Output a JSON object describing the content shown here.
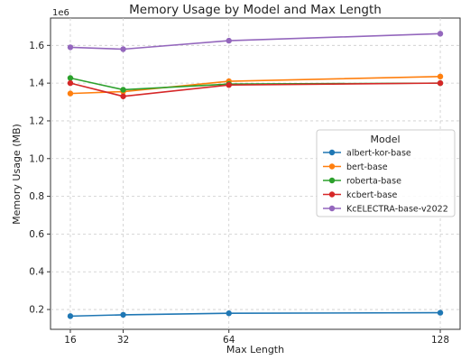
{
  "chart_data": {
    "type": "line",
    "title": "Memory Usage by Model and Max Length",
    "xlabel": "Max Length",
    "ylabel": "Memory Usage (MB)",
    "y_multiplier": "1e6",
    "x": [
      16,
      32,
      64,
      128
    ],
    "x_ticks": [
      "16",
      "32",
      "64",
      "128"
    ],
    "xlim": [
      10,
      134
    ],
    "ylim": [
      0.095,
      1.745
    ],
    "y_ticks": [
      "0.2",
      "0.4",
      "0.6",
      "0.8",
      "1.0",
      "1.2",
      "1.4",
      "1.6"
    ],
    "grid": true,
    "legend_title": "Model",
    "legend_position": "center-right",
    "series": [
      {
        "name": "albert-kor-base",
        "color": "#1f77b4",
        "values": [
          0.165,
          0.172,
          0.18,
          0.183
        ]
      },
      {
        "name": "bert-base",
        "color": "#ff7f0e",
        "values": [
          1.345,
          1.355,
          1.41,
          1.435
        ]
      },
      {
        "name": "roberta-base",
        "color": "#2ca02c",
        "values": [
          1.427,
          1.365,
          1.395,
          1.4
        ]
      },
      {
        "name": "kcbert-base",
        "color": "#d62728",
        "values": [
          1.4,
          1.33,
          1.39,
          1.4
        ]
      },
      {
        "name": "KcELECTRA-base-v2022",
        "color": "#9467bd",
        "values": [
          1.59,
          1.58,
          1.625,
          1.662
        ]
      }
    ]
  }
}
